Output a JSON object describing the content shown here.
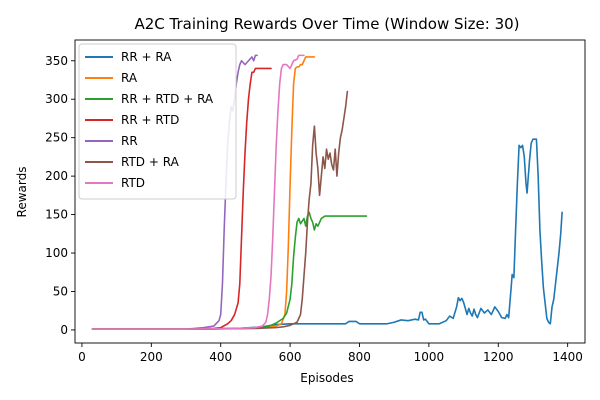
{
  "chart_data": {
    "type": "line",
    "title": "A2C Training Rewards Over Time (Window Size: 30)",
    "xlabel": "Episodes",
    "ylabel": "Rewards",
    "xlim": [
      -20,
      1450
    ],
    "ylim": [
      -17,
      377
    ],
    "xticks": [
      0,
      200,
      400,
      600,
      800,
      1000,
      1200,
      1400
    ],
    "yticks": [
      0,
      50,
      100,
      150,
      200,
      250,
      300,
      350
    ],
    "grid": false,
    "legend_position": "upper-left",
    "series": [
      {
        "name": "RR + RA",
        "color": "#1f77b4",
        "points": [
          [
            30,
            1
          ],
          [
            200,
            1
          ],
          [
            350,
            1
          ],
          [
            450,
            2
          ],
          [
            520,
            4
          ],
          [
            560,
            7
          ],
          [
            600,
            8
          ],
          [
            700,
            8
          ],
          [
            760,
            8
          ],
          [
            770,
            11
          ],
          [
            790,
            11
          ],
          [
            800,
            8
          ],
          [
            880,
            8
          ],
          [
            900,
            10
          ],
          [
            920,
            13
          ],
          [
            940,
            12
          ],
          [
            960,
            14
          ],
          [
            970,
            13
          ],
          [
            975,
            23
          ],
          [
            980,
            23
          ],
          [
            985,
            13
          ],
          [
            990,
            14
          ],
          [
            1000,
            8
          ],
          [
            1030,
            8
          ],
          [
            1050,
            12
          ],
          [
            1060,
            18
          ],
          [
            1070,
            15
          ],
          [
            1080,
            30
          ],
          [
            1085,
            42
          ],
          [
            1090,
            38
          ],
          [
            1095,
            41
          ],
          [
            1100,
            36
          ],
          [
            1105,
            28
          ],
          [
            1110,
            20
          ],
          [
            1115,
            28
          ],
          [
            1120,
            22
          ],
          [
            1125,
            18
          ],
          [
            1130,
            27
          ],
          [
            1135,
            20
          ],
          [
            1140,
            16
          ],
          [
            1150,
            28
          ],
          [
            1160,
            22
          ],
          [
            1170,
            26
          ],
          [
            1180,
            20
          ],
          [
            1190,
            30
          ],
          [
            1200,
            24
          ],
          [
            1210,
            16
          ],
          [
            1220,
            15
          ],
          [
            1225,
            20
          ],
          [
            1230,
            16
          ],
          [
            1238,
            60
          ],
          [
            1240,
            72
          ],
          [
            1245,
            68
          ],
          [
            1250,
            130
          ],
          [
            1255,
            190
          ],
          [
            1260,
            240
          ],
          [
            1265,
            237
          ],
          [
            1270,
            240
          ],
          [
            1275,
            225
          ],
          [
            1280,
            190
          ],
          [
            1283,
            178
          ],
          [
            1285,
            190
          ],
          [
            1290,
            220
          ],
          [
            1295,
            243
          ],
          [
            1300,
            248
          ],
          [
            1305,
            248
          ],
          [
            1310,
            248
          ],
          [
            1315,
            200
          ],
          [
            1320,
            130
          ],
          [
            1325,
            90
          ],
          [
            1330,
            55
          ],
          [
            1335,
            35
          ],
          [
            1340,
            15
          ],
          [
            1345,
            10
          ],
          [
            1350,
            8
          ],
          [
            1355,
            30
          ],
          [
            1360,
            40
          ],
          [
            1365,
            60
          ],
          [
            1370,
            80
          ],
          [
            1375,
            100
          ],
          [
            1380,
            125
          ],
          [
            1384,
            153
          ]
        ]
      },
      {
        "name": "RA",
        "color": "#ff7f0e",
        "points": [
          [
            30,
            1
          ],
          [
            300,
            1
          ],
          [
            450,
            2
          ],
          [
            520,
            3
          ],
          [
            560,
            5
          ],
          [
            575,
            8
          ],
          [
            585,
            20
          ],
          [
            590,
            50
          ],
          [
            595,
            110
          ],
          [
            600,
            190
          ],
          [
            605,
            260
          ],
          [
            610,
            320
          ],
          [
            615,
            340
          ],
          [
            620,
            342
          ],
          [
            625,
            342
          ],
          [
            630,
            345
          ],
          [
            635,
            345
          ],
          [
            640,
            350
          ],
          [
            645,
            355
          ],
          [
            660,
            355
          ],
          [
            670,
            355
          ]
        ]
      },
      {
        "name": "RR + RTD + RA",
        "color": "#2ca02c",
        "points": [
          [
            30,
            1
          ],
          [
            300,
            1
          ],
          [
            450,
            2
          ],
          [
            520,
            3
          ],
          [
            540,
            5
          ],
          [
            560,
            9
          ],
          [
            580,
            15
          ],
          [
            590,
            22
          ],
          [
            600,
            40
          ],
          [
            605,
            60
          ],
          [
            610,
            95
          ],
          [
            615,
            120
          ],
          [
            620,
            140
          ],
          [
            625,
            145
          ],
          [
            630,
            138
          ],
          [
            640,
            145
          ],
          [
            645,
            135
          ],
          [
            650,
            148
          ],
          [
            655,
            153
          ],
          [
            660,
            145
          ],
          [
            665,
            140
          ],
          [
            670,
            130
          ],
          [
            675,
            138
          ],
          [
            680,
            135
          ],
          [
            690,
            145
          ],
          [
            700,
            148
          ],
          [
            720,
            148
          ],
          [
            760,
            148
          ],
          [
            820,
            148
          ]
        ]
      },
      {
        "name": "RR + RTD",
        "color": "#d62728",
        "points": [
          [
            30,
            1
          ],
          [
            300,
            1
          ],
          [
            380,
            2
          ],
          [
            400,
            3
          ],
          [
            420,
            8
          ],
          [
            430,
            12
          ],
          [
            440,
            20
          ],
          [
            450,
            35
          ],
          [
            455,
            60
          ],
          [
            460,
            120
          ],
          [
            465,
            180
          ],
          [
            470,
            230
          ],
          [
            475,
            270
          ],
          [
            480,
            300
          ],
          [
            485,
            320
          ],
          [
            490,
            335
          ],
          [
            495,
            335
          ],
          [
            500,
            340
          ],
          [
            510,
            340
          ],
          [
            520,
            340
          ],
          [
            545,
            340
          ]
        ]
      },
      {
        "name": "RR",
        "color": "#9467bd",
        "points": [
          [
            30,
            1
          ],
          [
            300,
            1
          ],
          [
            350,
            3
          ],
          [
            380,
            5
          ],
          [
            395,
            12
          ],
          [
            400,
            20
          ],
          [
            405,
            60
          ],
          [
            410,
            130
          ],
          [
            415,
            190
          ],
          [
            420,
            240
          ],
          [
            425,
            270
          ],
          [
            430,
            290
          ],
          [
            435,
            285
          ],
          [
            440,
            300
          ],
          [
            445,
            320
          ],
          [
            450,
            335
          ],
          [
            455,
            345
          ],
          [
            460,
            350
          ],
          [
            470,
            345
          ],
          [
            480,
            350
          ],
          [
            490,
            355
          ],
          [
            495,
            350
          ],
          [
            500,
            357
          ],
          [
            505,
            357
          ]
        ]
      },
      {
        "name": "RTD + RA",
        "color": "#8c564b",
        "points": [
          [
            30,
            1
          ],
          [
            300,
            1
          ],
          [
            500,
            2
          ],
          [
            560,
            3
          ],
          [
            580,
            4
          ],
          [
            600,
            6
          ],
          [
            620,
            10
          ],
          [
            630,
            20
          ],
          [
            635,
            40
          ],
          [
            640,
            70
          ],
          [
            645,
            100
          ],
          [
            650,
            140
          ],
          [
            655,
            170
          ],
          [
            660,
            190
          ],
          [
            665,
            240
          ],
          [
            670,
            265
          ],
          [
            675,
            230
          ],
          [
            680,
            210
          ],
          [
            685,
            175
          ],
          [
            690,
            200
          ],
          [
            695,
            225
          ],
          [
            700,
            210
          ],
          [
            705,
            235
          ],
          [
            710,
            222
          ],
          [
            715,
            230
          ],
          [
            720,
            215
          ],
          [
            725,
            208
          ],
          [
            730,
            235
          ],
          [
            735,
            200
          ],
          [
            740,
            230
          ],
          [
            745,
            250
          ],
          [
            750,
            260
          ],
          [
            755,
            275
          ],
          [
            760,
            290
          ],
          [
            765,
            310
          ]
        ]
      },
      {
        "name": "RTD",
        "color": "#e377c2",
        "points": [
          [
            30,
            1
          ],
          [
            300,
            1
          ],
          [
            450,
            2
          ],
          [
            500,
            3
          ],
          [
            520,
            5
          ],
          [
            530,
            10
          ],
          [
            535,
            20
          ],
          [
            540,
            40
          ],
          [
            545,
            70
          ],
          [
            550,
            120
          ],
          [
            555,
            180
          ],
          [
            560,
            240
          ],
          [
            565,
            285
          ],
          [
            570,
            320
          ],
          [
            575,
            340
          ],
          [
            580,
            345
          ],
          [
            590,
            345
          ],
          [
            600,
            340
          ],
          [
            605,
            345
          ],
          [
            610,
            350
          ],
          [
            620,
            352
          ],
          [
            625,
            357
          ],
          [
            640,
            357
          ]
        ]
      }
    ]
  }
}
